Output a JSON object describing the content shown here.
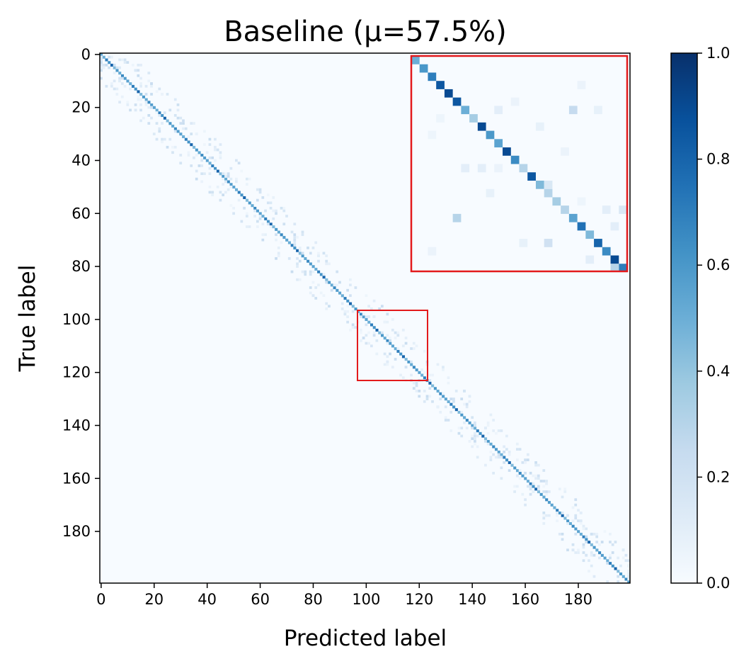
{
  "chart_data": {
    "type": "heatmap",
    "title": "Baseline (μ=57.5%)",
    "xlabel": "Predicted label",
    "ylabel": "True label",
    "n_classes": 200,
    "xlim": [
      0,
      199
    ],
    "ylim": [
      199,
      0
    ],
    "x_ticks": [
      "0",
      "20",
      "40",
      "60",
      "80",
      "100",
      "120",
      "140",
      "160",
      "180"
    ],
    "y_ticks": [
      "0",
      "20",
      "40",
      "60",
      "80",
      "100",
      "120",
      "140",
      "160",
      "180"
    ],
    "colormap": "Blues",
    "color_range": [
      0.0,
      1.0
    ],
    "colorbar_ticks": [
      "0.0",
      "0.2",
      "0.4",
      "0.6",
      "0.8",
      "1.0"
    ],
    "diagonal_values_sample": [
      0.55,
      0.5,
      0.7,
      0.62,
      0.8,
      0.45,
      0.6,
      0.52,
      0.66,
      0.58
    ],
    "zoom_region": {
      "x": [
        97,
        123
      ],
      "y": [
        97,
        123
      ]
    },
    "zoom_diagonal": [
      0.5,
      0.6,
      0.7,
      0.85,
      0.9,
      0.85,
      0.5,
      0.35,
      0.9,
      0.6,
      0.55,
      0.9,
      0.65,
      0.3,
      0.85,
      0.45,
      0.3,
      0.35,
      0.3,
      0.55,
      0.75,
      0.45,
      0.8,
      0.65,
      0.9,
      0.7
    ],
    "zoom_off_diagonal": [
      {
        "r": 6,
        "c": 10,
        "v": 0.1
      },
      {
        "r": 6,
        "c": 19,
        "v": 0.25
      },
      {
        "r": 6,
        "c": 22,
        "v": 0.08
      },
      {
        "r": 5,
        "c": 12,
        "v": 0.06
      },
      {
        "r": 7,
        "c": 3,
        "v": 0.05
      },
      {
        "r": 8,
        "c": 15,
        "v": 0.08
      },
      {
        "r": 13,
        "c": 6,
        "v": 0.1
      },
      {
        "r": 13,
        "c": 8,
        "v": 0.1
      },
      {
        "r": 13,
        "c": 10,
        "v": 0.06
      },
      {
        "r": 15,
        "c": 16,
        "v": 0.15
      },
      {
        "r": 16,
        "c": 9,
        "v": 0.08
      },
      {
        "r": 17,
        "c": 20,
        "v": 0.05
      },
      {
        "r": 19,
        "c": 5,
        "v": 0.3
      },
      {
        "r": 18,
        "c": 23,
        "v": 0.1
      },
      {
        "r": 20,
        "c": 24,
        "v": 0.1
      },
      {
        "r": 22,
        "c": 16,
        "v": 0.2
      },
      {
        "r": 22,
        "c": 13,
        "v": 0.08
      },
      {
        "r": 24,
        "c": 21,
        "v": 0.1
      },
      {
        "r": 25,
        "c": 24,
        "v": 0.3
      },
      {
        "r": 18,
        "c": 25,
        "v": 0.15
      },
      {
        "r": 11,
        "c": 18,
        "v": 0.06
      },
      {
        "r": 3,
        "c": 20,
        "v": 0.06
      },
      {
        "r": 9,
        "c": 2,
        "v": 0.05
      },
      {
        "r": 23,
        "c": 2,
        "v": 0.06
      }
    ],
    "highlight_color": "#e31a1c",
    "grid": false
  }
}
